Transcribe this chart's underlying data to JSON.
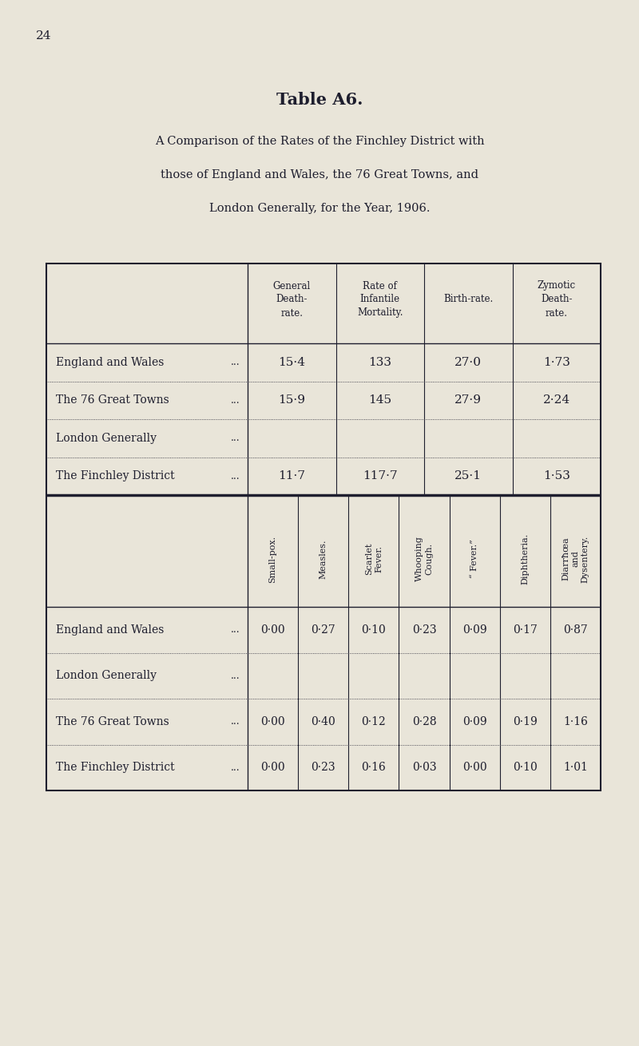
{
  "page_number": "24",
  "title": "Table A6.",
  "subtitle_lines": [
    "A Comparison of the Rates of the Finchley District with",
    "those of England and Wales, the 76 Great Towns, and",
    "London Generally, for the Year, 1906."
  ],
  "bg_color": "#e9e5d9",
  "text_color": "#1e1e2e",
  "table1": {
    "col_headers": [
      "General\nDeath-\nrate.",
      "Rate of\nInfantile\nMortality.",
      "Birth-rate.",
      "Zymotic\nDeath-\nrate."
    ],
    "rows": [
      {
        "label": "England and Wales",
        "dots": "...",
        "values": [
          "15·4",
          "133",
          "27·0",
          "1·73"
        ]
      },
      {
        "label": "The 76 Great Towns",
        "dots": "...",
        "values": [
          "15·9",
          "145",
          "27·9",
          "2·24"
        ]
      },
      {
        "label": "London Generally",
        "dots": "...",
        "values": [
          "",
          "",
          "",
          ""
        ]
      },
      {
        "label": "The Finchley District",
        "dots": "...",
        "values": [
          "11·7",
          "117·7",
          "25·1",
          "1·53"
        ]
      }
    ]
  },
  "table2": {
    "col_headers": [
      "Small-pox.",
      "Measles.",
      "Scarlet\nFever.",
      "Whooping\nCough.",
      "“ Fever.”",
      "Diphtheria.",
      "Diarrħœa\nand\nDysentery."
    ],
    "rows": [
      {
        "label": "England and Wales",
        "dots": "...",
        "values": [
          "0·00",
          "0·27",
          "0·10",
          "0·23",
          "0·09",
          "0·17",
          "0·87"
        ]
      },
      {
        "label": "London Generally",
        "dots": "...",
        "values": [
          "",
          "",
          "",
          "",
          "",
          "",
          ""
        ]
      },
      {
        "label": "The 76 Great Towns",
        "dots": "...",
        "values": [
          "0·00",
          "0·40",
          "0·12",
          "0·28",
          "0·09",
          "0·19",
          "1·16"
        ]
      },
      {
        "label": "The Finchley District",
        "dots": "...",
        "values": [
          "0·00",
          "0·23",
          "0·16",
          "0·03",
          "0·00",
          "0·10",
          "1·01"
        ]
      }
    ]
  }
}
